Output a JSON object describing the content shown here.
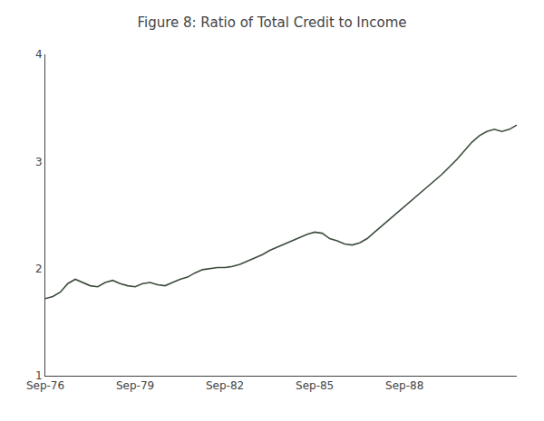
{
  "chart_data": {
    "type": "line",
    "title": "Figure 8: Ratio of Total Credit to Income",
    "categories": [
      "Sep-76",
      null,
      null,
      null,
      null,
      null,
      null,
      null,
      null,
      null,
      null,
      null,
      "Sep-79",
      null,
      null,
      null,
      null,
      null,
      null,
      null,
      null,
      null,
      null,
      null,
      "Sep-82",
      null,
      null,
      null,
      null,
      null,
      null,
      null,
      null,
      null,
      null,
      null,
      "Sep-85",
      null,
      null,
      null,
      null,
      null,
      null,
      null,
      null,
      null,
      null,
      null,
      "Sep-88",
      null,
      null,
      null,
      null,
      null,
      null,
      null,
      null,
      null,
      null,
      null,
      null,
      null,
      null,
      null
    ],
    "values": [
      1.72,
      1.74,
      1.78,
      1.86,
      1.9,
      1.87,
      1.84,
      1.83,
      1.87,
      1.89,
      1.86,
      1.84,
      1.83,
      1.86,
      1.87,
      1.85,
      1.84,
      1.87,
      1.9,
      1.92,
      1.96,
      1.99,
      2.0,
      2.01,
      2.01,
      2.02,
      2.04,
      2.07,
      2.1,
      2.13,
      2.17,
      2.2,
      2.23,
      2.26,
      2.29,
      2.32,
      2.34,
      2.33,
      2.28,
      2.26,
      2.23,
      2.22,
      2.24,
      2.28,
      2.34,
      2.4,
      2.46,
      2.52,
      2.58,
      2.64,
      2.7,
      2.76,
      2.82,
      2.88,
      2.95,
      3.02,
      3.1,
      3.18,
      3.24,
      3.28,
      3.3,
      3.28,
      3.3,
      3.34
    ],
    "color": "#3d4d3d",
    "ylim": [
      1,
      4
    ],
    "yticks": [
      1,
      2,
      3,
      4
    ],
    "grid": false
  }
}
